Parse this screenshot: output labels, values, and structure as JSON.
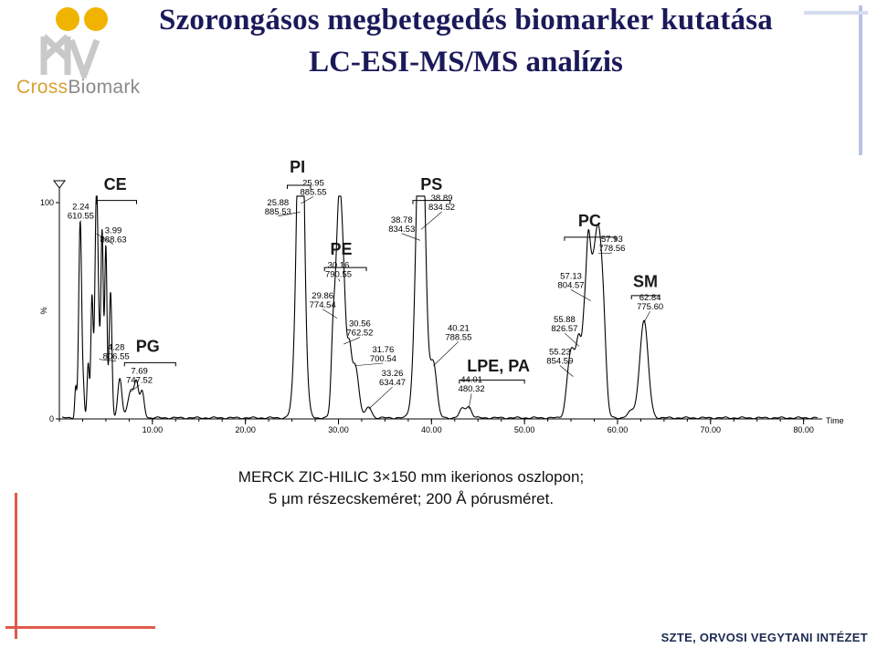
{
  "title_line1": "Szorongásos megbetegedés biomarker kutatása",
  "title_line2": "LC-ESI-MS/MS analízis",
  "logo": {
    "text_a": "Cross",
    "text_b": "Biomark",
    "color_a": "#d8a032",
    "color_b": "#8a8a8a",
    "dot_color": "#f0b400"
  },
  "caption_line1": "MERCK ZIC-HILIC 3×150 mm ikerionos oszlopon;",
  "caption_line2": "5 μm részecskeméret; 200 Å pórusméret.",
  "footer": "SZTE, ORVOSI VEGYTANI INTÉZET",
  "accent_red": "#e05a4e",
  "accent_blue": "#b7c3e3",
  "chart_data": {
    "type": "line",
    "xlabel": "Time",
    "ylabel": "%",
    "xlim": [
      0,
      82
    ],
    "ylim": [
      0,
      100
    ],
    "x_ticks": [
      {
        "value": 10,
        "label": "10.00"
      },
      {
        "value": 20,
        "label": "20.00"
      },
      {
        "value": 30,
        "label": "30.00"
      },
      {
        "value": 40,
        "label": "40.00"
      },
      {
        "value": 50,
        "label": "50.00"
      },
      {
        "value": 60,
        "label": "60.00"
      },
      {
        "value": 70,
        "label": "70.00"
      },
      {
        "value": 80,
        "label": "80.00"
      }
    ],
    "y_ticks": [
      {
        "value": 0,
        "label": "0"
      },
      {
        "value": 100,
        "label": "100"
      }
    ],
    "peaks": [
      {
        "rt": 2.24,
        "h": 91,
        "w": 0.16,
        "l1": "2.24",
        "l2": "610.55",
        "lx": 2.3,
        "ly": 93
      },
      {
        "rt": 3.99,
        "h": 86,
        "w": 0.16,
        "l1": "3.99",
        "l2": "888.63",
        "lx": 5.8,
        "ly": 82
      },
      {
        "rt": 4.28,
        "h": 28,
        "w": 0.4,
        "l1": "4.28",
        "l2": "806.55",
        "lx": 6.1,
        "ly": 28
      },
      {
        "rt": 7.69,
        "h": 13,
        "w": 0.32,
        "l1": "7.69",
        "l2": "747.52",
        "lx": 8.6,
        "ly": 17
      },
      {
        "rt": 25.88,
        "h": 96,
        "w": 0.45,
        "l1": "25.88",
        "l2": "885.53",
        "lx": 23.5,
        "ly": 95
      },
      {
        "rt": 25.95,
        "h": 100,
        "w": 0.3,
        "l1": "25.95",
        "l2": "885.55",
        "lx": 27.3,
        "ly": 104
      },
      {
        "rt": 29.86,
        "h": 47,
        "w": 0.35,
        "l1": "29.86",
        "l2": "774.54",
        "lx": 28.3,
        "ly": 52
      },
      {
        "rt": 30.16,
        "h": 64,
        "w": 0.3,
        "l1": "30.16",
        "l2": "790.55",
        "lx": 30.0,
        "ly": 66
      },
      {
        "rt": 30.56,
        "h": 35,
        "w": 0.25,
        "l1": "30.56",
        "l2": "762.52",
        "lx": 32.3,
        "ly": 39
      },
      {
        "rt": 31.76,
        "h": 25,
        "w": 0.4,
        "l1": "31.76",
        "l2": "700.54",
        "lx": 34.8,
        "ly": 27
      },
      {
        "rt": 33.26,
        "h": 5,
        "w": 0.3,
        "l1": "33.26",
        "l2": "634.47",
        "lx": 35.8,
        "ly": 16
      },
      {
        "rt": 38.78,
        "h": 83,
        "w": 0.5,
        "l1": "38.78",
        "l2": "834.53",
        "lx": 36.8,
        "ly": 87
      },
      {
        "rt": 38.89,
        "h": 88,
        "w": 0.4,
        "l1": "38.89",
        "l2": "834.52",
        "lx": 41.1,
        "ly": 97
      },
      {
        "rt": 40.21,
        "h": 25,
        "w": 0.35,
        "l1": "40.21",
        "l2": "788.55",
        "lx": 42.9,
        "ly": 37
      },
      {
        "rt": 44.01,
        "h": 5,
        "w": 0.3,
        "l1": "44.01",
        "l2": "480.32",
        "lx": 44.3,
        "ly": 13
      },
      {
        "rt": 55.23,
        "h": 20,
        "w": 0.35,
        "l1": "55.23",
        "l2": "854.59",
        "lx": 53.8,
        "ly": 26
      },
      {
        "rt": 55.88,
        "h": 34,
        "w": 0.3,
        "l1": "55.88",
        "l2": "826.57",
        "lx": 54.3,
        "ly": 41
      },
      {
        "rt": 57.13,
        "h": 55,
        "w": 0.4,
        "l1": "57.13",
        "l2": "804.57",
        "lx": 55.0,
        "ly": 61
      },
      {
        "rt": 57.93,
        "h": 77,
        "w": 0.4,
        "l1": "57.93",
        "l2": "778.56",
        "lx": 59.4,
        "ly": 78
      },
      {
        "rt": 62.84,
        "h": 45,
        "w": 0.45,
        "l1": "62.84",
        "l2": "775.60",
        "lx": 63.5,
        "ly": 51
      }
    ],
    "extra_peaks": [
      {
        "rt": 1.75,
        "h": 14,
        "w": 0.1
      },
      {
        "rt": 2.6,
        "h": 10,
        "w": 0.1
      },
      {
        "rt": 3.1,
        "h": 25,
        "w": 0.12
      },
      {
        "rt": 3.5,
        "h": 52,
        "w": 0.12
      },
      {
        "rt": 4.6,
        "h": 66,
        "w": 0.12
      },
      {
        "rt": 5.0,
        "h": 74,
        "w": 0.12
      },
      {
        "rt": 5.5,
        "h": 58,
        "w": 0.15
      },
      {
        "rt": 6.5,
        "h": 18,
        "w": 0.22
      },
      {
        "rt": 8.3,
        "h": 15,
        "w": 0.22
      },
      {
        "rt": 8.9,
        "h": 12,
        "w": 0.22
      },
      {
        "rt": 29.4,
        "h": 24,
        "w": 0.2
      },
      {
        "rt": 30.9,
        "h": 14,
        "w": 0.25
      },
      {
        "rt": 31.2,
        "h": 18,
        "w": 0.2
      },
      {
        "rt": 43.3,
        "h": 4,
        "w": 0.3
      },
      {
        "rt": 54.8,
        "h": 18,
        "w": 0.35
      },
      {
        "rt": 56.4,
        "h": 27,
        "w": 0.2
      },
      {
        "rt": 56.8,
        "h": 40,
        "w": 0.22
      },
      {
        "rt": 58.5,
        "h": 30,
        "w": 0.3
      },
      {
        "rt": 61.5,
        "h": 3,
        "w": 0.4
      }
    ],
    "classes": [
      {
        "name": "CE",
        "x1": 4.0,
        "x2": 8.3,
        "y": 101,
        "lx": 6.0,
        "ly": 106
      },
      {
        "name": "PG",
        "x1": 7.0,
        "x2": 12.5,
        "y": 26,
        "lx": 9.5,
        "ly": 31
      },
      {
        "name": "PI",
        "x1": 24.5,
        "x2": 27.0,
        "y": 108,
        "lx": 25.6,
        "ly": 114
      },
      {
        "name": "PE",
        "x1": 28.5,
        "x2": 33.0,
        "y": 70,
        "lx": 30.3,
        "ly": 76
      },
      {
        "name": "PS",
        "x1": 38.0,
        "x2": 42.0,
        "y": 101,
        "lx": 40.0,
        "ly": 106
      },
      {
        "name": "LPE, PA",
        "x1": 43.0,
        "x2": 50.0,
        "y": 18,
        "lx": 47.2,
        "ly": 22
      },
      {
        "name": "PC",
        "x1": 54.3,
        "x2": 59.8,
        "y": 84,
        "lx": 57.0,
        "ly": 89
      },
      {
        "name": "SM",
        "x1": 61.5,
        "x2": 64.5,
        "y": 57,
        "lx": 63.0,
        "ly": 61
      }
    ]
  }
}
